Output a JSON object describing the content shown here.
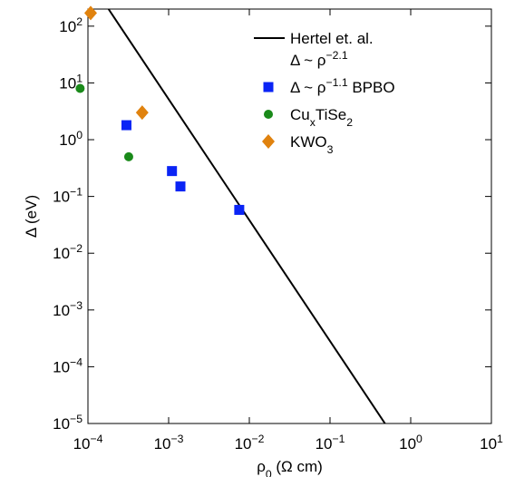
{
  "chart_data": {
    "type": "scatter",
    "xlabel": "ρ_{0} (Ω cm)",
    "ylabel": "Δ (eV)",
    "xscale": "log",
    "yscale": "log",
    "xlim": [
      0.0001,
      10
    ],
    "ylim": [
      1e-05,
      200
    ],
    "xticks": [
      {
        "value": 0.0001,
        "label": "10^{−4}"
      },
      {
        "value": 0.001,
        "label": "10^{−3}"
      },
      {
        "value": 0.01,
        "label": "10^{−2}"
      },
      {
        "value": 0.1,
        "label": "10^{−1}"
      },
      {
        "value": 1,
        "label": "10^{0}"
      },
      {
        "value": 10,
        "label": "10^{1}"
      }
    ],
    "yticks": [
      {
        "value": 1e-05,
        "label": "10^{−5}"
      },
      {
        "value": 0.0001,
        "label": "10^{−4}"
      },
      {
        "value": 0.001,
        "label": "10^{−3}"
      },
      {
        "value": 0.01,
        "label": "10^{−2}"
      },
      {
        "value": 0.1,
        "label": "10^{−1}"
      },
      {
        "value": 1,
        "label": "10^{0}"
      },
      {
        "value": 10,
        "label": "10^{1}"
      },
      {
        "value": 100,
        "label": "10^{2}"
      }
    ],
    "legend": "upper right",
    "series": [
      {
        "name": "Hertel et. al.\nΔ ~ ρ^{−2.1}",
        "mode": "line",
        "color": "#000000",
        "x": [
          0.00018,
          0.48
        ],
        "values": [
          200,
          1e-05
        ]
      },
      {
        "name": "Δ ~ ρ^{−1.1} BPBO",
        "mode": "square",
        "color": "#0a24f5",
        "x": [
          0.0003,
          0.0011,
          0.0014,
          0.0075
        ],
        "values": [
          1.8,
          0.28,
          0.15,
          0.058
        ]
      },
      {
        "name": "Cu_{x}TiSe_{2}",
        "mode": "circle",
        "color": "#1a8a1a",
        "x": [
          8e-05,
          0.00032
        ],
        "values": [
          8,
          0.5
        ]
      },
      {
        "name": "KWO_{3}",
        "mode": "diamond",
        "color": "#e0820e",
        "x": [
          0.000108,
          0.00047
        ],
        "values": [
          170,
          3.0
        ]
      }
    ]
  }
}
